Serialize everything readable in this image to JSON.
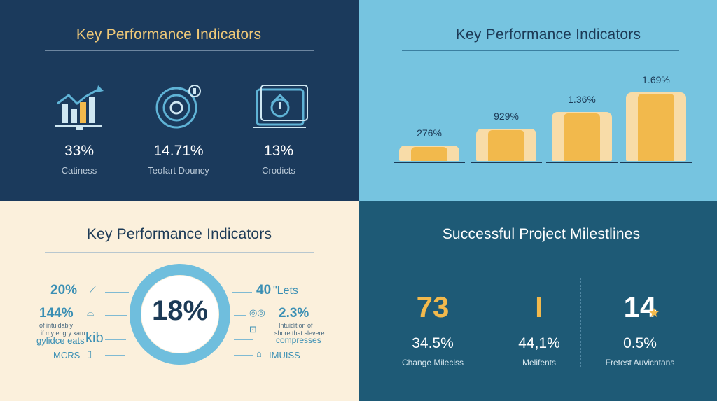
{
  "q1": {
    "title": "Key Performance Indicators",
    "kpis": [
      {
        "value": "33%",
        "label": "Catiness",
        "icon": "bar-chart-icon"
      },
      {
        "value": "14.71%",
        "label": "Teofart Douncy",
        "icon": "target-disc-icon"
      },
      {
        "value": "13%",
        "label": "Crodicts",
        "icon": "dashboard-box-icon"
      }
    ]
  },
  "q2": {
    "title": "Key Performance Indicators",
    "bars": [
      {
        "label": "276%",
        "level": 0.18
      },
      {
        "label": "929%",
        "level": 0.38
      },
      {
        "label": "1.36%",
        "level": 0.58
      },
      {
        "label": "1.69%",
        "level": 0.82
      }
    ]
  },
  "q3": {
    "title": "Key Performance Indicators",
    "center_value": "18%",
    "left": {
      "stat1": "20%",
      "stat2": "144%",
      "small1": "of intuldably",
      "small2": "if my engry kam",
      "text3": "gylidce eats",
      "text4": "kib",
      "text5": "MCRS"
    },
    "right": {
      "stat1": "40",
      "stat1_suffix": "\"Lets",
      "stat2": "2.3%",
      "small1": "Intuidition of",
      "small2": "shore that slevere",
      "text3": "compresses",
      "text4": "IMUISS"
    },
    "accent": "#3a8fb4"
  },
  "q4": {
    "title": "Successful Project Milestlines",
    "milestones": [
      {
        "big": "73",
        "value": "34.5%",
        "label": "Change Mileclss",
        "color": "#f2b94c"
      },
      {
        "big": "I",
        "value": "44,1%",
        "label": "Melifents",
        "color": "#f2b94c"
      },
      {
        "big": "14",
        "value": "0.5%",
        "label": "Fretest Auvicntans",
        "color": "#ffffff"
      }
    ]
  }
}
